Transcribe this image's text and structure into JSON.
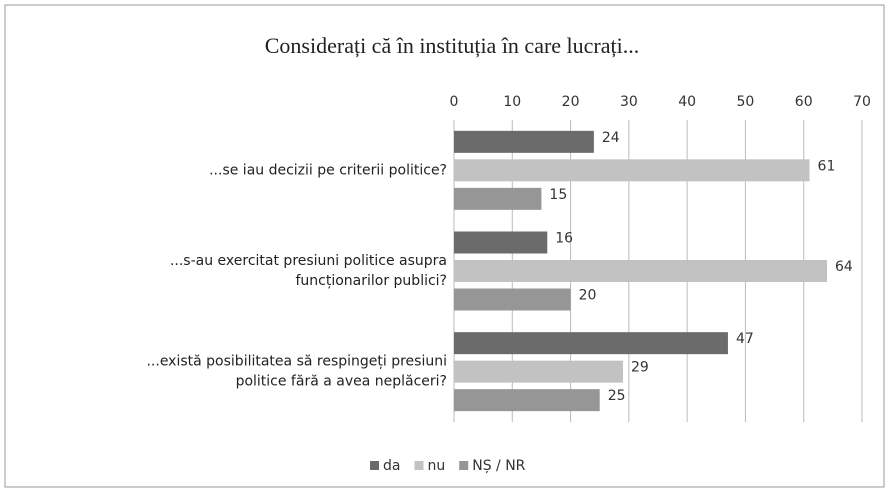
{
  "chart_data": {
    "type": "hbar",
    "title": "Considerați că în instituția în care lucrați...",
    "categories": [
      [
        "...se iau decizii pe criterii politice?"
      ],
      [
        "...s-au exercitat presiuni politice asupra",
        "funcționarilor publici?"
      ],
      [
        "...există posibilitatea să respingeți presiuni",
        "politice fără a avea neplăceri?"
      ]
    ],
    "series": [
      {
        "name": "da",
        "color": "#6b6b6b",
        "values": [
          24,
          16,
          47
        ]
      },
      {
        "name": "nu",
        "color": "#c2c2c2",
        "values": [
          61,
          64,
          29
        ]
      },
      {
        "name": "NȘ / NR",
        "color": "#969696",
        "values": [
          15,
          20,
          25
        ]
      }
    ],
    "xlim": [
      0,
      70
    ],
    "xticks": [
      0,
      10,
      20,
      30,
      40,
      50,
      60,
      70
    ],
    "grid": true,
    "legend": "bottom"
  }
}
